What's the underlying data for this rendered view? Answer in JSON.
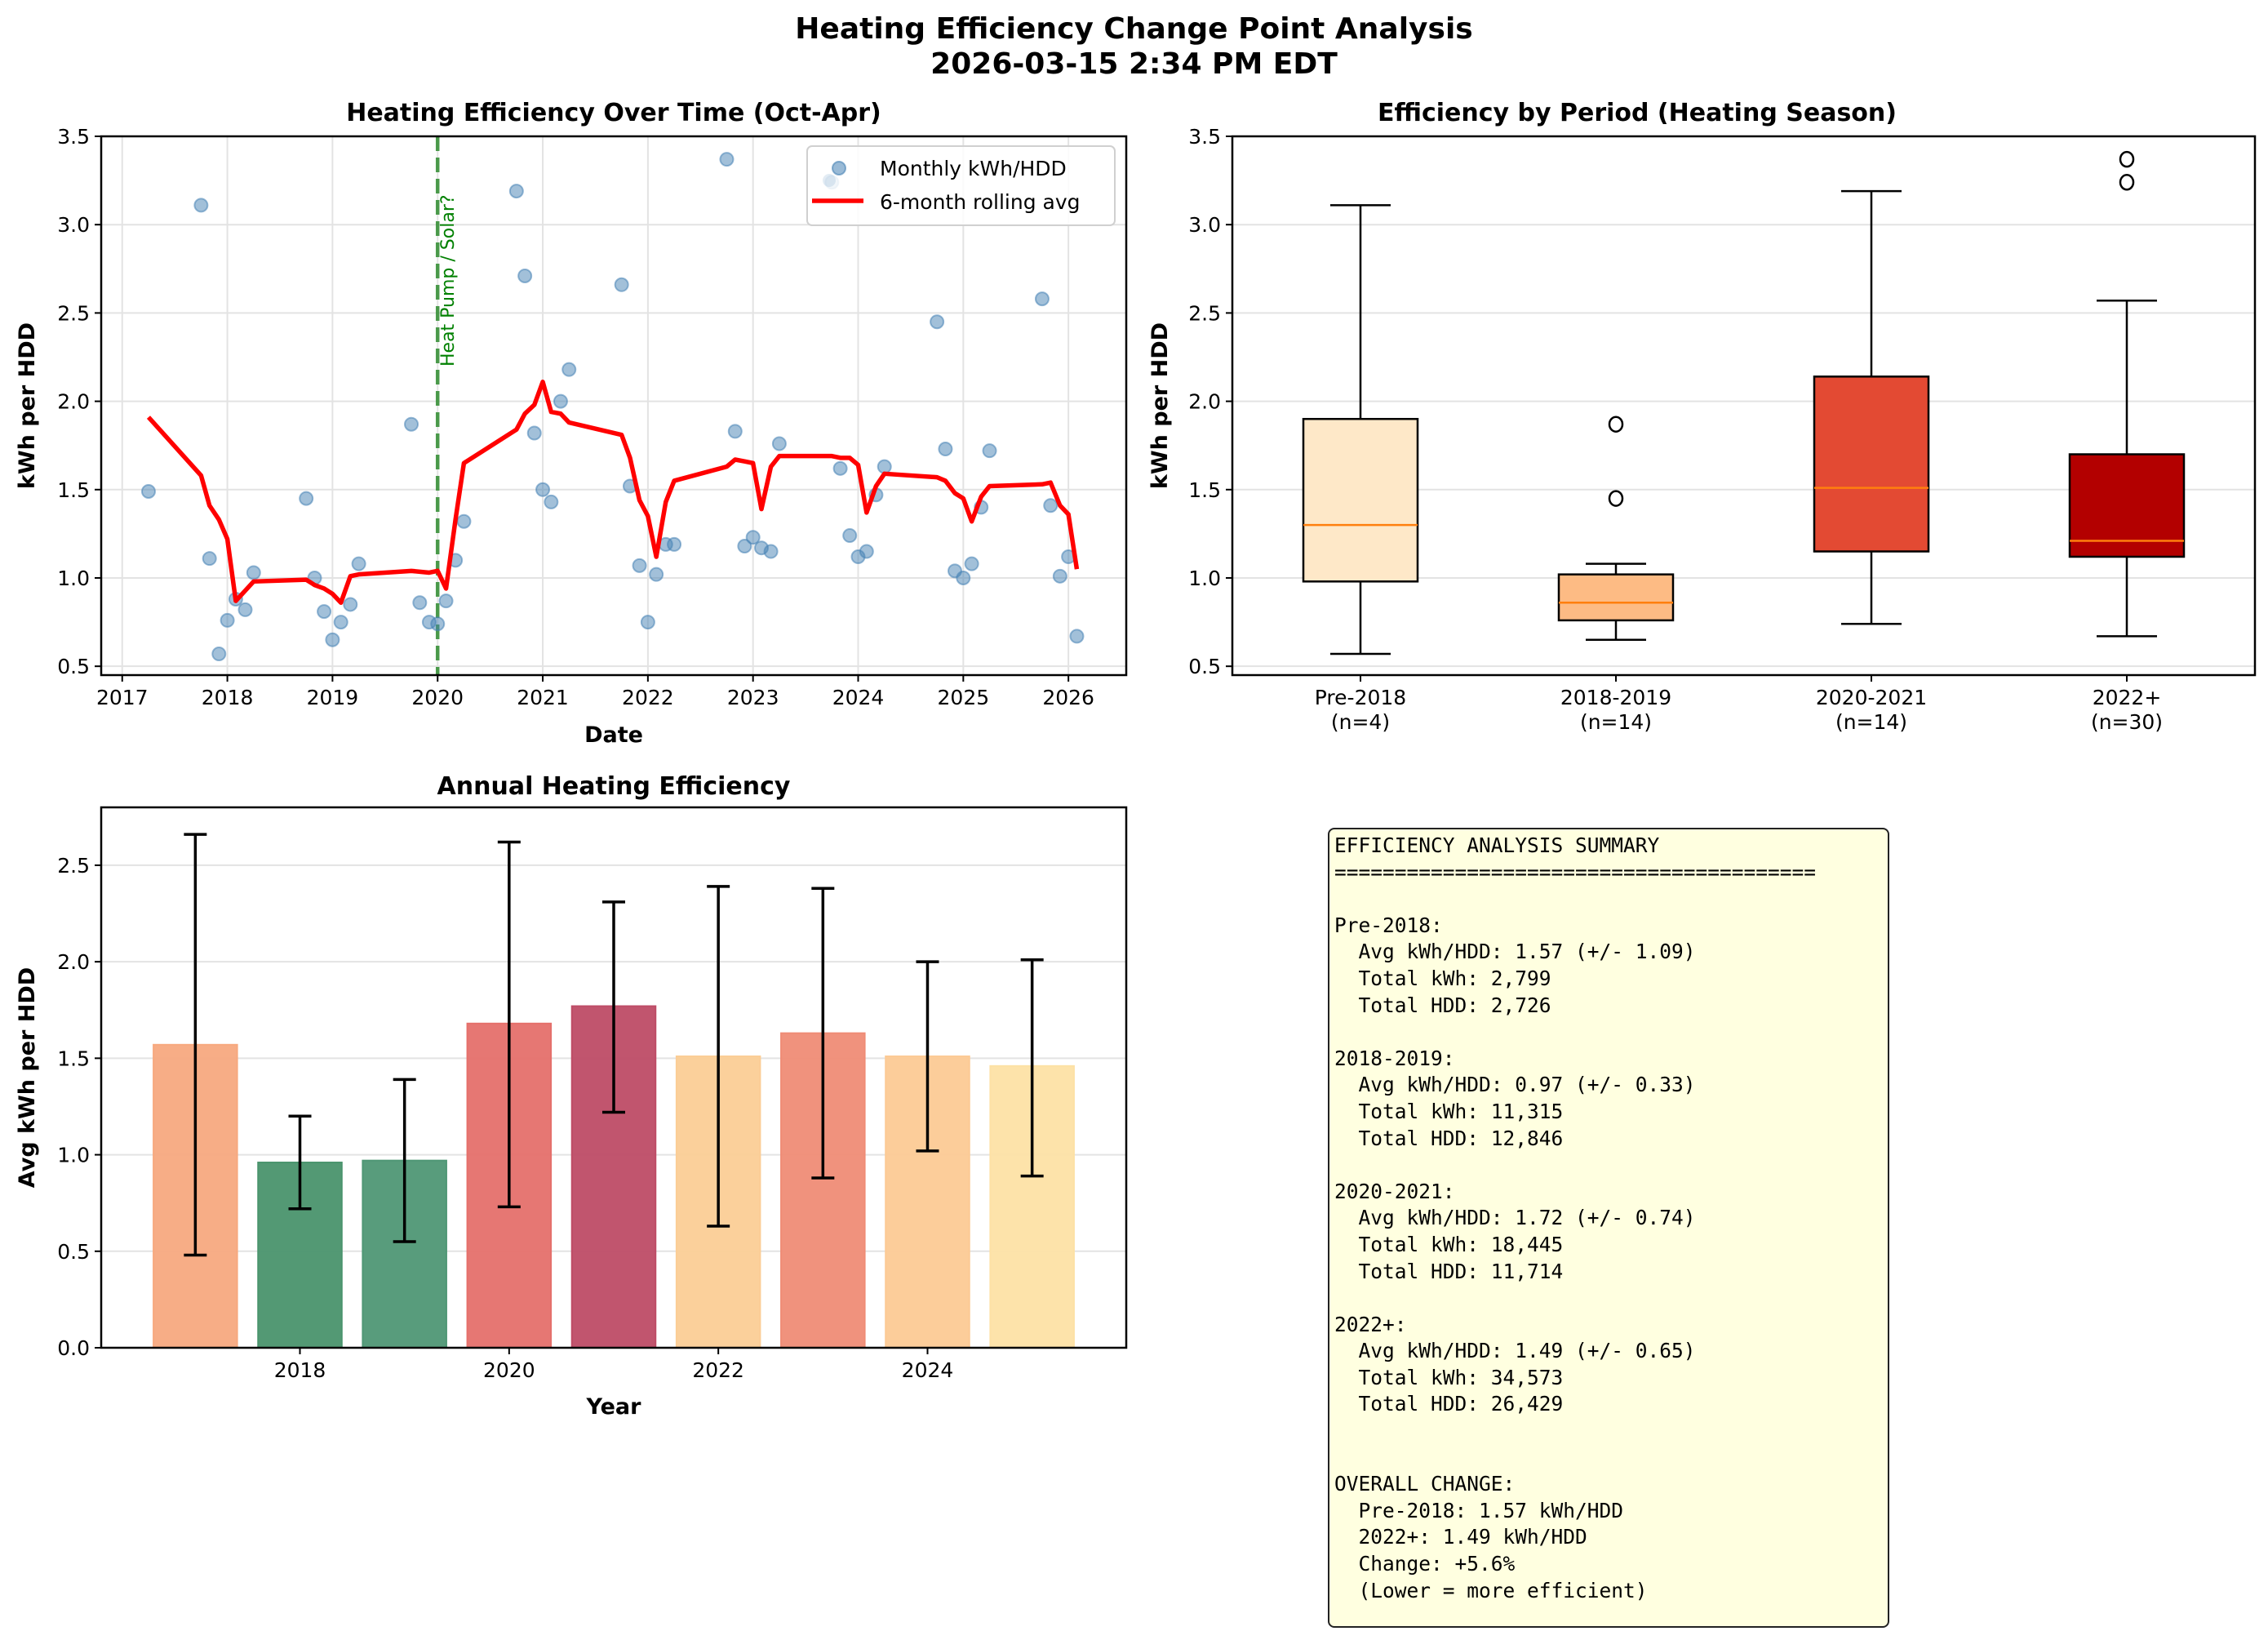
{
  "figure": {
    "title_line1": "Heating Efficiency Change Point Analysis",
    "title_line2": "2026-03-15 2:34 PM EDT"
  },
  "chart_data": [
    {
      "type": "scatter",
      "title": "Heating Efficiency Over Time (Oct-Apr)",
      "xlabel": "Date",
      "ylabel": "kWh per HDD",
      "xlim": [
        2016.8,
        2026.55
      ],
      "ylim": [
        0.45,
        3.5
      ],
      "xticks": [
        "2017",
        "2018",
        "2019",
        "2020",
        "2021",
        "2022",
        "2023",
        "2024",
        "2025",
        "2026"
      ],
      "yticks": [
        "0.5",
        "1.0",
        "1.5",
        "2.0",
        "2.5",
        "3.0",
        "3.5"
      ],
      "grid": true,
      "legend_position": "top-right",
      "legend": [
        "Monthly kWh/HDD",
        "6-month rolling avg"
      ],
      "annotation": {
        "x": 2020.0,
        "text": "Heat Pump / Solar?",
        "color": "#2e8b2e"
      },
      "colors": {
        "scatter": "#4682b4",
        "rolling": "#ff0000"
      },
      "series": [
        {
          "name": "Monthly kWh/HDD",
          "points": [
            [
              2017.25,
              1.49
            ],
            [
              2017.75,
              3.11
            ],
            [
              2017.83,
              1.11
            ],
            [
              2017.92,
              0.57
            ],
            [
              2018.0,
              0.76
            ],
            [
              2018.08,
              0.88
            ],
            [
              2018.17,
              0.82
            ],
            [
              2018.25,
              1.03
            ],
            [
              2018.75,
              1.45
            ],
            [
              2018.83,
              1.0
            ],
            [
              2018.92,
              0.81
            ],
            [
              2019.0,
              0.65
            ],
            [
              2019.08,
              0.75
            ],
            [
              2019.17,
              0.85
            ],
            [
              2019.25,
              1.08
            ],
            [
              2019.75,
              1.87
            ],
            [
              2019.83,
              0.86
            ],
            [
              2019.92,
              0.75
            ],
            [
              2020.0,
              0.74
            ],
            [
              2020.08,
              0.87
            ],
            [
              2020.17,
              1.1
            ],
            [
              2020.25,
              1.32
            ],
            [
              2020.75,
              3.19
            ],
            [
              2020.83,
              2.71
            ],
            [
              2020.92,
              1.82
            ],
            [
              2021.0,
              1.5
            ],
            [
              2021.08,
              1.43
            ],
            [
              2021.17,
              2.0
            ],
            [
              2021.25,
              2.18
            ],
            [
              2021.75,
              2.66
            ],
            [
              2021.83,
              1.52
            ],
            [
              2021.92,
              1.07
            ],
            [
              2022.0,
              0.75
            ],
            [
              2022.08,
              1.02
            ],
            [
              2022.17,
              1.19
            ],
            [
              2022.25,
              1.19
            ],
            [
              2022.75,
              3.37
            ],
            [
              2022.83,
              1.83
            ],
            [
              2022.92,
              1.18
            ],
            [
              2023.0,
              1.23
            ],
            [
              2023.08,
              1.17
            ],
            [
              2023.17,
              1.15
            ],
            [
              2023.25,
              1.76
            ],
            [
              2023.75,
              3.24
            ],
            [
              2023.83,
              1.62
            ],
            [
              2023.92,
              1.24
            ],
            [
              2024.0,
              1.12
            ],
            [
              2024.08,
              1.15
            ],
            [
              2024.17,
              1.47
            ],
            [
              2024.25,
              1.63
            ],
            [
              2024.75,
              2.45
            ],
            [
              2024.83,
              1.73
            ],
            [
              2024.92,
              1.04
            ],
            [
              2025.0,
              1.0
            ],
            [
              2025.08,
              1.08
            ],
            [
              2025.17,
              1.4
            ],
            [
              2025.25,
              1.72
            ],
            [
              2025.75,
              2.58
            ],
            [
              2025.83,
              1.41
            ],
            [
              2025.92,
              1.01
            ],
            [
              2026.0,
              1.12
            ],
            [
              2026.08,
              0.67
            ]
          ]
        },
        {
          "name": "6-month rolling avg",
          "points": [
            [
              2017.25,
              1.91
            ],
            [
              2017.75,
              1.58
            ],
            [
              2017.83,
              1.41
            ],
            [
              2017.92,
              1.33
            ],
            [
              2018.0,
              1.22
            ],
            [
              2018.08,
              0.87
            ],
            [
              2018.25,
              0.98
            ],
            [
              2018.75,
              0.99
            ],
            [
              2018.83,
              0.96
            ],
            [
              2018.92,
              0.94
            ],
            [
              2019.0,
              0.91
            ],
            [
              2019.08,
              0.86
            ],
            [
              2019.17,
              1.01
            ],
            [
              2019.25,
              1.02
            ],
            [
              2019.75,
              1.04
            ],
            [
              2019.92,
              1.03
            ],
            [
              2020.0,
              1.04
            ],
            [
              2020.08,
              0.94
            ],
            [
              2020.17,
              1.33
            ],
            [
              2020.25,
              1.65
            ],
            [
              2020.75,
              1.84
            ],
            [
              2020.83,
              1.93
            ],
            [
              2020.92,
              1.98
            ],
            [
              2021.0,
              2.11
            ],
            [
              2021.08,
              1.94
            ],
            [
              2021.17,
              1.93
            ],
            [
              2021.25,
              1.88
            ],
            [
              2021.75,
              1.81
            ],
            [
              2021.83,
              1.68
            ],
            [
              2021.92,
              1.44
            ],
            [
              2022.0,
              1.35
            ],
            [
              2022.08,
              1.12
            ],
            [
              2022.17,
              1.43
            ],
            [
              2022.25,
              1.55
            ],
            [
              2022.75,
              1.63
            ],
            [
              2022.83,
              1.67
            ],
            [
              2022.92,
              1.66
            ],
            [
              2023.0,
              1.65
            ],
            [
              2023.08,
              1.39
            ],
            [
              2023.17,
              1.63
            ],
            [
              2023.25,
              1.69
            ],
            [
              2023.75,
              1.69
            ],
            [
              2023.83,
              1.68
            ],
            [
              2023.92,
              1.68
            ],
            [
              2024.0,
              1.64
            ],
            [
              2024.08,
              1.37
            ],
            [
              2024.17,
              1.52
            ],
            [
              2024.25,
              1.59
            ],
            [
              2024.75,
              1.57
            ],
            [
              2024.83,
              1.55
            ],
            [
              2024.92,
              1.48
            ],
            [
              2025.0,
              1.45
            ],
            [
              2025.08,
              1.32
            ],
            [
              2025.17,
              1.46
            ],
            [
              2025.25,
              1.52
            ],
            [
              2025.75,
              1.53
            ],
            [
              2025.83,
              1.54
            ],
            [
              2025.92,
              1.41
            ],
            [
              2026.0,
              1.36
            ],
            [
              2026.08,
              1.05
            ]
          ]
        }
      ]
    },
    {
      "type": "box",
      "title": "Efficiency by Period (Heating Season)",
      "xlabel": "",
      "ylabel": "kWh per HDD",
      "ylim": [
        0.45,
        3.5
      ],
      "yticks": [
        "0.5",
        "1.0",
        "1.5",
        "2.0",
        "2.5",
        "3.0",
        "3.5"
      ],
      "grid": true,
      "categories": [
        {
          "label": "Pre-2018",
          "n_label": "(n=4)",
          "whisker_low": 0.57,
          "q1": 0.98,
          "median": 1.3,
          "q3": 1.9,
          "whisker_high": 3.11,
          "outliers": [],
          "color": "#fee8c8"
        },
        {
          "label": "2018-2019",
          "n_label": "(n=14)",
          "whisker_low": 0.65,
          "q1": 0.76,
          "median": 0.86,
          "q3": 1.02,
          "whisker_high": 1.08,
          "outliers": [
            1.45,
            1.87
          ],
          "color": "#fdbb84"
        },
        {
          "label": "2020-2021",
          "n_label": "(n=14)",
          "whisker_low": 0.74,
          "q1": 1.15,
          "median": 1.51,
          "q3": 2.14,
          "whisker_high": 3.19,
          "outliers": [],
          "color": "#e34a33"
        },
        {
          "label": "2022+",
          "n_label": "(n=30)",
          "whisker_low": 0.67,
          "q1": 1.12,
          "median": 1.21,
          "q3": 1.7,
          "whisker_high": 2.57,
          "outliers": [
            3.24,
            3.37
          ],
          "color": "#b30000"
        }
      ],
      "median_color": "#ff7f0e"
    },
    {
      "type": "bar",
      "title": "Annual Heating Efficiency",
      "xlabel": "Year",
      "ylabel": "Avg kWh per HDD",
      "ylim": [
        0,
        2.8
      ],
      "xlim": [
        2016.1,
        2025.9
      ],
      "yticks": [
        "0.0",
        "0.5",
        "1.0",
        "1.5",
        "2.0",
        "2.5"
      ],
      "xticks": [
        "2018",
        "2020",
        "2022",
        "2024"
      ],
      "grid": true,
      "categories": [
        "2017",
        "2018",
        "2019",
        "2020",
        "2021",
        "2022",
        "2023",
        "2024",
        "2025"
      ],
      "values": [
        1.57,
        0.96,
        0.97,
        1.68,
        1.77,
        1.51,
        1.63,
        1.51,
        1.46
      ],
      "error_low": [
        0.48,
        0.72,
        0.55,
        0.73,
        1.22,
        0.63,
        0.88,
        1.02,
        0.89
      ],
      "error_high": [
        2.66,
        1.2,
        1.39,
        2.62,
        2.31,
        2.39,
        2.38,
        2.0,
        2.01
      ],
      "colors": [
        "#f7a97f",
        "#4a946d",
        "#4f9775",
        "#e5706b",
        "#be4c66",
        "#fbcd96",
        "#ef8c76",
        "#fcca95",
        "#fde1a5"
      ]
    }
  ],
  "summary": {
    "lines": [
      "EFFICIENCY ANALYSIS SUMMARY",
      "========================================",
      "",
      "Pre-2018:",
      "  Avg kWh/HDD: 1.57 (+/- 1.09)",
      "  Total kWh: 2,799",
      "  Total HDD: 2,726",
      "",
      "2018-2019:",
      "  Avg kWh/HDD: 0.97 (+/- 0.33)",
      "  Total kWh: 11,315",
      "  Total HDD: 12,846",
      "",
      "2020-2021:",
      "  Avg kWh/HDD: 1.72 (+/- 0.74)",
      "  Total kWh: 18,445",
      "  Total HDD: 11,714",
      "",
      "2022+:",
      "  Avg kWh/HDD: 1.49 (+/- 0.65)",
      "  Total kWh: 34,573",
      "  Total HDD: 26,429",
      "",
      "",
      "OVERALL CHANGE:",
      "  Pre-2018: 1.57 kWh/HDD",
      "  2022+: 1.49 kWh/HDD",
      "  Change: +5.6%",
      "  (Lower = more efficient)"
    ]
  }
}
